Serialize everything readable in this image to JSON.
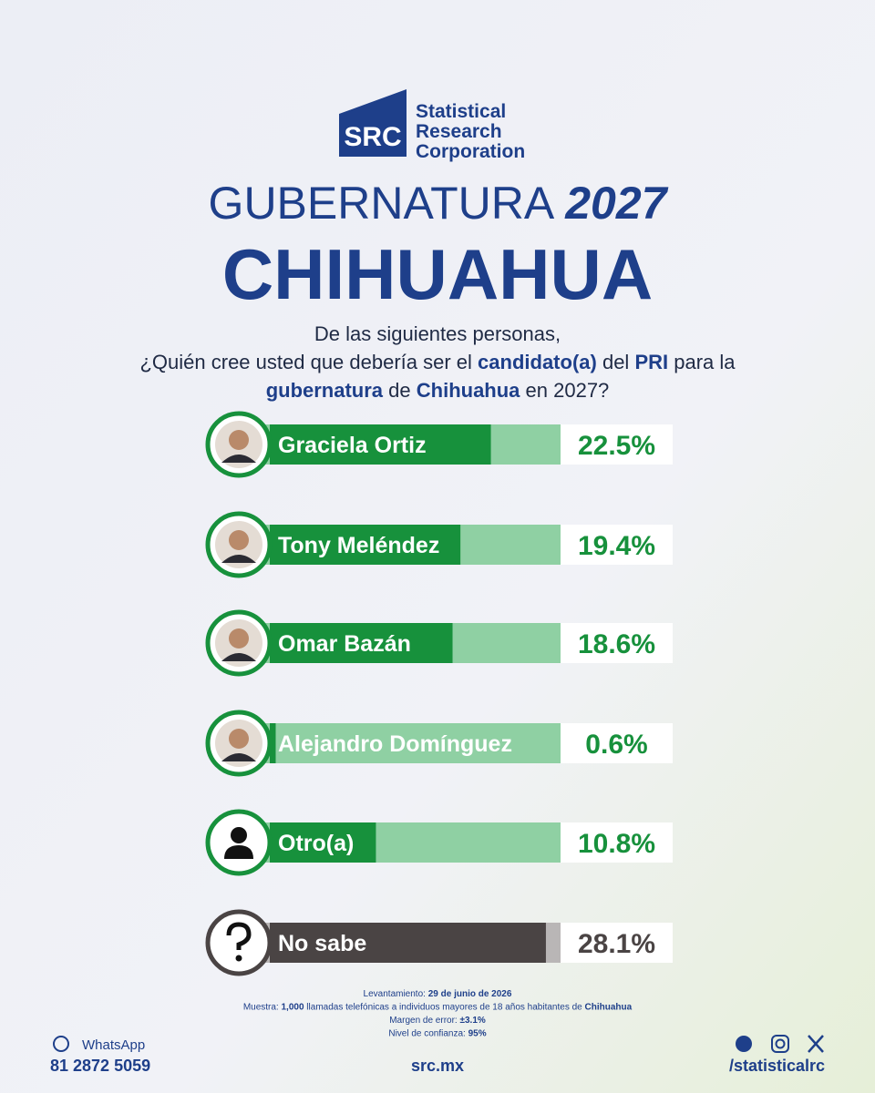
{
  "logo": {
    "mark": "SRC",
    "line1": "Statistical",
    "line2": "Research",
    "line3": "Corporation"
  },
  "header": {
    "title_light": "GUBERNATURA",
    "title_year": "2027",
    "state": "CHIHUAHUA"
  },
  "question": [
    [
      {
        "text": "De las siguientes personas,",
        "bold": false
      }
    ],
    [
      {
        "text": "¿Quién cree usted que debería ser el ",
        "bold": false
      },
      {
        "text": "candidato(a)",
        "bold": true
      },
      {
        "text": " del ",
        "bold": false
      },
      {
        "text": "PRI",
        "bold": true
      },
      {
        "text": " para la",
        "bold": false
      }
    ],
    [
      {
        "text": "gubernatura",
        "bold": true
      },
      {
        "text": " de ",
        "bold": false
      },
      {
        "text": "Chihuahua",
        "bold": true
      },
      {
        "text": " en 2027?",
        "bold": false
      }
    ]
  ],
  "chart_data": {
    "type": "bar",
    "orientation": "horizontal",
    "categories": [
      "Graciela Ortiz",
      "Tony Meléndez",
      "Omar Bazán",
      "Alejandro Domínguez",
      "Otro(a)",
      "No sabe"
    ],
    "values": [
      22.5,
      19.4,
      18.6,
      0.6,
      10.8,
      28.1
    ],
    "value_labels": [
      "22.5%",
      "19.4%",
      "18.6%",
      "0.6%",
      "10.8%",
      "28.1%"
    ],
    "colors": [
      "#17913c",
      "#17913c",
      "#17913c",
      "#17913c",
      "#17913c",
      "#4a4444"
    ],
    "track_colors": [
      "#8fd0a3",
      "#8fd0a3",
      "#8fd0a3",
      "#8fd0a3",
      "#8fd0a3",
      "#b9b6b6"
    ],
    "xlim": [
      0,
      41
    ]
  },
  "footer": {
    "notes": [
      [
        {
          "text": "Levantamiento: ",
          "bold": false
        },
        {
          "text": "29 de junio de 2026",
          "bold": true
        }
      ],
      [
        {
          "text": "Muestra: ",
          "bold": false
        },
        {
          "text": "1,000",
          "bold": true
        },
        {
          "text": " llamadas telefónicas a individuos mayores de 18 años habitantes de ",
          "bold": false
        },
        {
          "text": "Chihuahua",
          "bold": true
        }
      ],
      [
        {
          "text": "Margen de error: ",
          "bold": false
        },
        {
          "text": "±3.1%",
          "bold": true
        }
      ],
      [
        {
          "text": "Nivel de confianza: ",
          "bold": false
        },
        {
          "text": "95%",
          "bold": true
        }
      ]
    ],
    "whatsapp": "WhatsApp",
    "phone": "81 2872 5059",
    "site": "src.mx",
    "handle": "/statisticalrc"
  }
}
